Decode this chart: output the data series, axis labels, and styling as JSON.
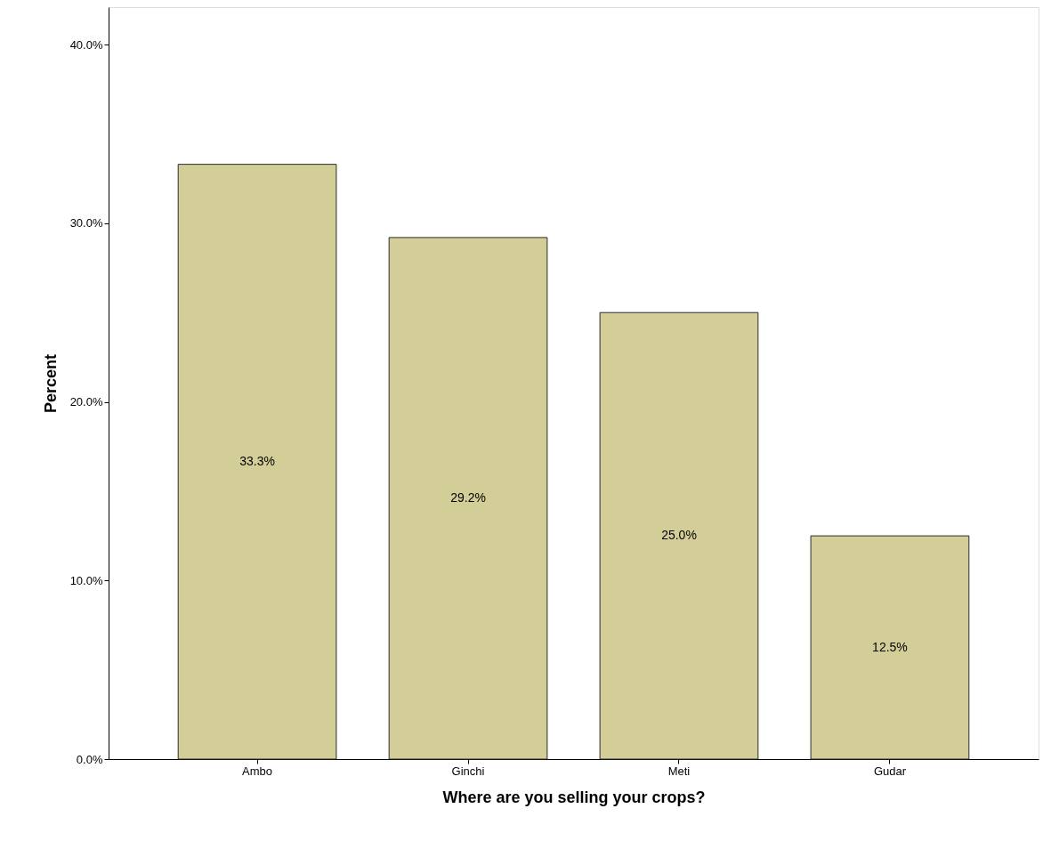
{
  "chart_data": {
    "type": "bar",
    "xlabel": "Where are you selling your crops?",
    "ylabel": "Percent",
    "categories": [
      "Ambo",
      "Ginchi",
      "Meti",
      "Gudar"
    ],
    "values": [
      33.3,
      29.2,
      25.0,
      12.5
    ],
    "value_labels": [
      "33.3%",
      "29.2%",
      "25.0%",
      "12.5%"
    ],
    "color": "#d3ce97",
    "ylim": [
      0,
      42.1
    ],
    "yticks": [
      {
        "value": 0,
        "label": "0.0%"
      },
      {
        "value": 10,
        "label": "10.0%"
      },
      {
        "value": 20,
        "label": "20.0%"
      },
      {
        "value": 30,
        "label": "30.0%"
      },
      {
        "value": 40,
        "label": "40.0%"
      }
    ],
    "grid": false
  }
}
